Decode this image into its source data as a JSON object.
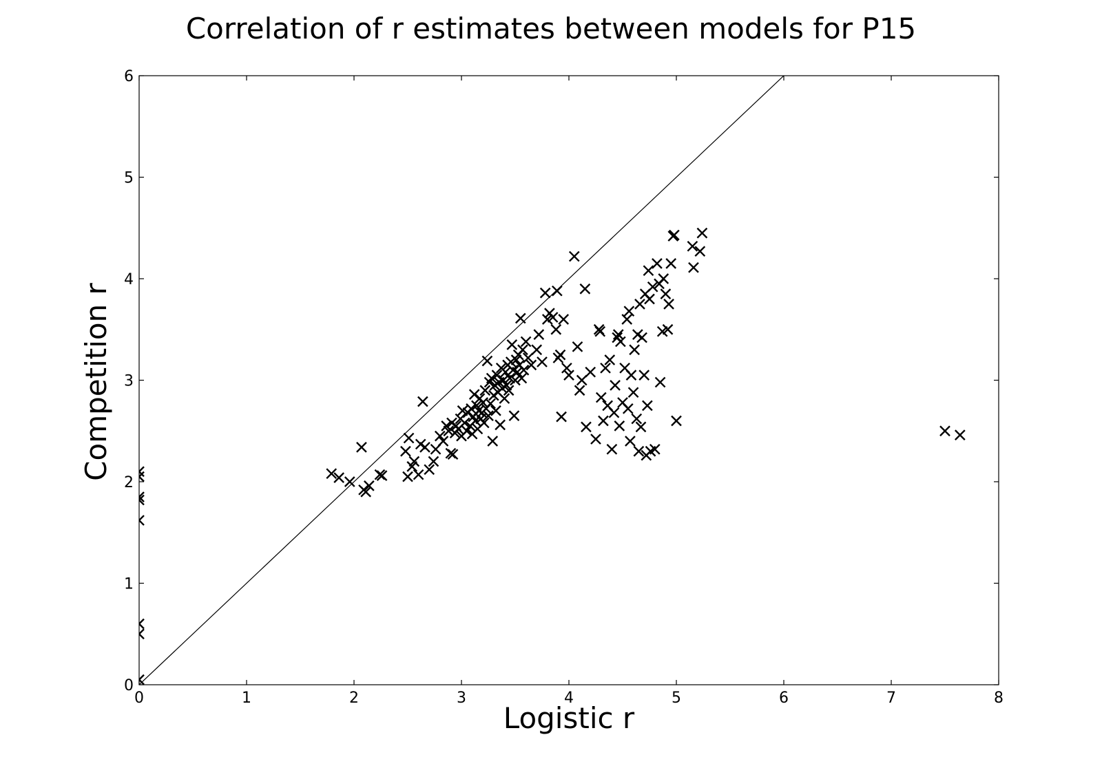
{
  "chart_data": {
    "type": "scatter",
    "title": "Correlation of r estimates between models for P15",
    "xlabel": "Logistic r",
    "ylabel": "Competition r",
    "xlim": [
      0,
      8
    ],
    "ylim": [
      0,
      6
    ],
    "xticks": [
      "0",
      "1",
      "2",
      "3",
      "4",
      "5",
      "6",
      "7",
      "8"
    ],
    "yticks": [
      "0",
      "1",
      "2",
      "3",
      "4",
      "5",
      "6"
    ],
    "reference_line": {
      "from": [
        0,
        0
      ],
      "to": [
        6,
        6
      ]
    },
    "grid": false,
    "legend": "none",
    "marker": "x",
    "colors": {
      "marker": "#000000",
      "line": "#000000",
      "axes": "#000000"
    },
    "points": [
      [
        0.0,
        2.1
      ],
      [
        0.0,
        2.05
      ],
      [
        0.0,
        1.85
      ],
      [
        0.0,
        1.82
      ],
      [
        0.0,
        1.62
      ],
      [
        0.0,
        0.6
      ],
      [
        0.0,
        0.5
      ],
      [
        0.0,
        0.05
      ],
      [
        1.79,
        2.08
      ],
      [
        1.86,
        2.04
      ],
      [
        1.96,
        2.0
      ],
      [
        2.07,
        2.34
      ],
      [
        2.09,
        1.92
      ],
      [
        2.11,
        1.9
      ],
      [
        2.14,
        1.96
      ],
      [
        2.24,
        2.07
      ],
      [
        2.26,
        2.06
      ],
      [
        2.48,
        2.3
      ],
      [
        2.5,
        2.05
      ],
      [
        2.51,
        2.43
      ],
      [
        2.54,
        2.15
      ],
      [
        2.56,
        2.2
      ],
      [
        2.6,
        2.07
      ],
      [
        2.62,
        2.37
      ],
      [
        2.64,
        2.79
      ],
      [
        2.66,
        2.34
      ],
      [
        2.7,
        2.12
      ],
      [
        2.74,
        2.2
      ],
      [
        2.76,
        2.32
      ],
      [
        2.8,
        2.45
      ],
      [
        2.83,
        2.4
      ],
      [
        2.86,
        2.55
      ],
      [
        2.88,
        2.5
      ],
      [
        2.9,
        2.28
      ],
      [
        2.91,
        2.58
      ],
      [
        2.92,
        2.27
      ],
      [
        2.94,
        2.48
      ],
      [
        2.95,
        2.55
      ],
      [
        2.97,
        2.52
      ],
      [
        2.99,
        2.62
      ],
      [
        3.0,
        2.45
      ],
      [
        3.01,
        2.7
      ],
      [
        3.03,
        2.58
      ],
      [
        3.05,
        2.5
      ],
      [
        3.06,
        2.68
      ],
      [
        3.08,
        2.55
      ],
      [
        3.09,
        2.72
      ],
      [
        3.1,
        2.47
      ],
      [
        3.11,
        2.64
      ],
      [
        3.12,
        2.86
      ],
      [
        3.13,
        2.6
      ],
      [
        3.14,
        2.75
      ],
      [
        3.15,
        2.52
      ],
      [
        3.16,
        2.7
      ],
      [
        3.17,
        2.82
      ],
      [
        3.18,
        2.62
      ],
      [
        3.19,
        2.68
      ],
      [
        3.2,
        2.78
      ],
      [
        3.21,
        2.58
      ],
      [
        3.22,
        2.9
      ],
      [
        3.23,
        2.72
      ],
      [
        3.24,
        3.19
      ],
      [
        3.25,
        2.65
      ],
      [
        3.26,
        2.98
      ],
      [
        3.27,
        2.77
      ],
      [
        3.28,
        3.02
      ],
      [
        3.29,
        2.4
      ],
      [
        3.3,
        2.85
      ],
      [
        3.31,
        2.95
      ],
      [
        3.32,
        2.7
      ],
      [
        3.33,
        3.05
      ],
      [
        3.34,
        2.88
      ],
      [
        3.35,
        2.98
      ],
      [
        3.36,
        2.56
      ],
      [
        3.37,
        3.12
      ],
      [
        3.38,
        2.92
      ],
      [
        3.39,
        3.0
      ],
      [
        3.4,
        2.82
      ],
      [
        3.41,
        3.08
      ],
      [
        3.42,
        2.95
      ],
      [
        3.43,
        3.15
      ],
      [
        3.44,
        2.9
      ],
      [
        3.45,
        3.02
      ],
      [
        3.46,
        3.18
      ],
      [
        3.47,
        3.35
      ],
      [
        3.48,
        3.1
      ],
      [
        3.49,
        2.65
      ],
      [
        3.5,
        3.0
      ],
      [
        3.51,
        3.2
      ],
      [
        3.52,
        3.08
      ],
      [
        3.53,
        3.25
      ],
      [
        3.54,
        3.15
      ],
      [
        3.55,
        3.61
      ],
      [
        3.56,
        3.02
      ],
      [
        3.57,
        3.3
      ],
      [
        3.58,
        3.1
      ],
      [
        3.6,
        3.38
      ],
      [
        3.62,
        3.22
      ],
      [
        3.65,
        3.15
      ],
      [
        3.7,
        3.3
      ],
      [
        3.72,
        3.45
      ],
      [
        3.75,
        3.18
      ],
      [
        3.78,
        3.86
      ],
      [
        3.8,
        3.6
      ],
      [
        3.82,
        3.66
      ],
      [
        3.85,
        3.62
      ],
      [
        3.88,
        3.5
      ],
      [
        3.89,
        3.88
      ],
      [
        3.9,
        3.22
      ],
      [
        3.92,
        3.25
      ],
      [
        3.93,
        2.64
      ],
      [
        3.95,
        3.6
      ],
      [
        3.98,
        3.12
      ],
      [
        4.0,
        3.05
      ],
      [
        4.05,
        4.22
      ],
      [
        4.08,
        3.33
      ],
      [
        4.1,
        2.9
      ],
      [
        4.12,
        3.0
      ],
      [
        4.15,
        3.9
      ],
      [
        4.16,
        2.54
      ],
      [
        4.2,
        3.08
      ],
      [
        4.25,
        2.42
      ],
      [
        4.28,
        3.5
      ],
      [
        4.29,
        3.48
      ],
      [
        4.3,
        2.83
      ],
      [
        4.32,
        2.6
      ],
      [
        4.34,
        3.12
      ],
      [
        4.36,
        2.75
      ],
      [
        4.38,
        3.2
      ],
      [
        4.4,
        2.32
      ],
      [
        4.42,
        2.68
      ],
      [
        4.43,
        2.95
      ],
      [
        4.45,
        3.42
      ],
      [
        4.46,
        3.45
      ],
      [
        4.47,
        2.55
      ],
      [
        4.48,
        3.38
      ],
      [
        4.5,
        2.78
      ],
      [
        4.52,
        3.12
      ],
      [
        4.54,
        3.6
      ],
      [
        4.55,
        2.72
      ],
      [
        4.56,
        3.68
      ],
      [
        4.57,
        2.4
      ],
      [
        4.58,
        3.05
      ],
      [
        4.6,
        2.88
      ],
      [
        4.61,
        3.3
      ],
      [
        4.63,
        2.62
      ],
      [
        4.64,
        3.45
      ],
      [
        4.65,
        2.3
      ],
      [
        4.66,
        3.75
      ],
      [
        4.67,
        2.54
      ],
      [
        4.68,
        3.42
      ],
      [
        4.7,
        3.05
      ],
      [
        4.71,
        3.85
      ],
      [
        4.72,
        2.26
      ],
      [
        4.73,
        2.75
      ],
      [
        4.74,
        4.08
      ],
      [
        4.75,
        3.8
      ],
      [
        4.76,
        2.3
      ],
      [
        4.78,
        3.92
      ],
      [
        4.8,
        2.32
      ],
      [
        4.82,
        4.15
      ],
      [
        4.84,
        3.95
      ],
      [
        4.85,
        2.98
      ],
      [
        4.87,
        3.48
      ],
      [
        4.88,
        4.0
      ],
      [
        4.9,
        3.85
      ],
      [
        4.92,
        3.5
      ],
      [
        4.93,
        3.75
      ],
      [
        4.95,
        4.15
      ],
      [
        4.97,
        4.42
      ],
      [
        4.98,
        4.43
      ],
      [
        5.0,
        2.6
      ],
      [
        5.15,
        4.32
      ],
      [
        5.16,
        4.11
      ],
      [
        5.22,
        4.27
      ],
      [
        5.24,
        4.45
      ],
      [
        7.5,
        2.5
      ],
      [
        7.64,
        2.46
      ]
    ]
  }
}
